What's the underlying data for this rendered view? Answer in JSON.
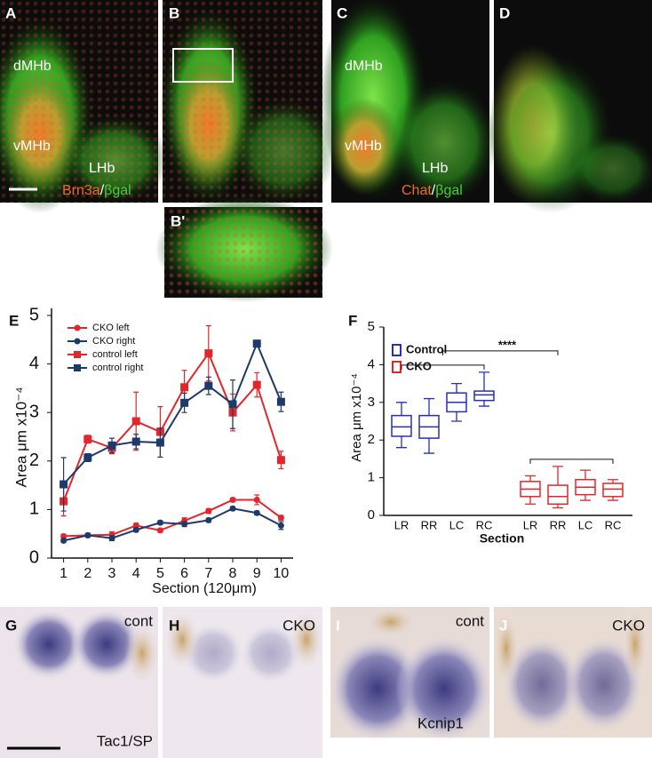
{
  "panels": [
    {
      "label": "A",
      "texts": [
        "dMHb",
        "vMHb",
        "LHb"
      ],
      "stain": [
        "Brn3a",
        "/",
        "βgal"
      ]
    },
    {
      "label": "B"
    },
    {
      "label": "C",
      "texts": [
        "dMHb",
        "vMHb",
        "LHb"
      ],
      "stain": [
        "Chat",
        "/",
        "βgal"
      ]
    },
    {
      "label": "D"
    },
    {
      "label": "B'"
    },
    {
      "label": "G",
      "texts": [
        "cont",
        "Tac1/SP"
      ]
    },
    {
      "label": "H",
      "texts": [
        "CKO"
      ]
    },
    {
      "label": "I",
      "texts": [
        "cont",
        "Kcnip1"
      ]
    },
    {
      "label": "J",
      "texts": [
        "CKO"
      ]
    }
  ],
  "chart_data": [
    {
      "type": "line",
      "panel": "E",
      "y_label": "Area μm x10⁻⁴",
      "x_label": "Section (120μm)",
      "x": [
        1,
        2,
        3,
        4,
        5,
        6,
        7,
        8,
        9,
        10
      ],
      "xlim": [
        0.5,
        10.5
      ],
      "xticks": [
        1,
        2,
        3,
        4,
        5,
        6,
        7,
        8,
        9,
        10
      ],
      "ylim": [
        0,
        5
      ],
      "yticks": [
        0,
        1,
        2,
        3,
        4,
        5
      ],
      "legend": "upper-left",
      "series": [
        {
          "name": "CKO left",
          "color": "#e3262b",
          "marker": "circle",
          "values": [
            0.45,
            0.47,
            0.48,
            0.67,
            0.57,
            0.77,
            0.97,
            1.2,
            1.2,
            0.83
          ],
          "errors": [
            0.04,
            0.04,
            0.06,
            0.05,
            0.04,
            0.06,
            0.05,
            0.04,
            0.1,
            0.05
          ]
        },
        {
          "name": "CKO right",
          "color": "#1d3a6b",
          "marker": "circle",
          "values": [
            0.36,
            0.47,
            0.41,
            0.58,
            0.73,
            0.7,
            0.78,
            1.02,
            0.93,
            0.67
          ],
          "errors": [
            0.04,
            0.04,
            0.05,
            0.04,
            0.04,
            0.05,
            0.04,
            0.04,
            0.04,
            0.08
          ]
        },
        {
          "name": "control left",
          "color": "#e3262b",
          "marker": "square",
          "values": [
            1.17,
            2.45,
            2.27,
            2.82,
            2.6,
            3.52,
            4.22,
            3.0,
            3.57,
            2.02
          ],
          "errors": [
            0.3,
            0.08,
            0.12,
            0.6,
            0.52,
            0.35,
            0.57,
            0.38,
            0.25,
            0.18
          ]
        },
        {
          "name": "control right",
          "color": "#1d3a6b",
          "marker": "square",
          "values": [
            1.52,
            2.07,
            2.32,
            2.4,
            2.38,
            3.2,
            3.55,
            3.17,
            4.42,
            3.22
          ],
          "errors": [
            0.55,
            0.08,
            0.15,
            0.15,
            0.3,
            0.2,
            0.18,
            0.5,
            0.05,
            0.2
          ]
        }
      ]
    },
    {
      "type": "box",
      "panel": "F",
      "y_label": "Area μm x10⁻⁴",
      "x_label": "Section",
      "categories": [
        "LR",
        "RR",
        "LC",
        "RC",
        "LR",
        "RR",
        "LC",
        "RC"
      ],
      "ylim": [
        0,
        5
      ],
      "yticks": [
        0,
        1,
        2,
        3,
        4,
        5
      ],
      "legend": "upper-left",
      "annotation": "****",
      "series": [
        {
          "name": "Control",
          "color": "#2430b8",
          "boxes": [
            {
              "min": 1.8,
              "q1": 2.1,
              "median": 2.35,
              "q3": 2.65,
              "max": 3.0
            },
            {
              "min": 1.65,
              "q1": 2.05,
              "median": 2.35,
              "q3": 2.65,
              "max": 3.1
            },
            {
              "min": 2.5,
              "q1": 2.75,
              "median": 3.0,
              "q3": 3.25,
              "max": 3.5
            },
            {
              "min": 2.9,
              "q1": 3.05,
              "median": 3.2,
              "q3": 3.3,
              "max": 3.8
            }
          ]
        },
        {
          "name": "CKO",
          "color": "#e3262b",
          "boxes": [
            {
              "min": 0.3,
              "q1": 0.5,
              "median": 0.7,
              "q3": 0.9,
              "max": 1.05
            },
            {
              "min": 0.2,
              "q1": 0.3,
              "median": 0.5,
              "q3": 0.8,
              "max": 1.3
            },
            {
              "min": 0.4,
              "q1": 0.55,
              "median": 0.75,
              "q3": 0.95,
              "max": 1.2
            },
            {
              "min": 0.4,
              "q1": 0.5,
              "median": 0.7,
              "q3": 0.85,
              "max": 0.95
            }
          ]
        }
      ]
    }
  ]
}
